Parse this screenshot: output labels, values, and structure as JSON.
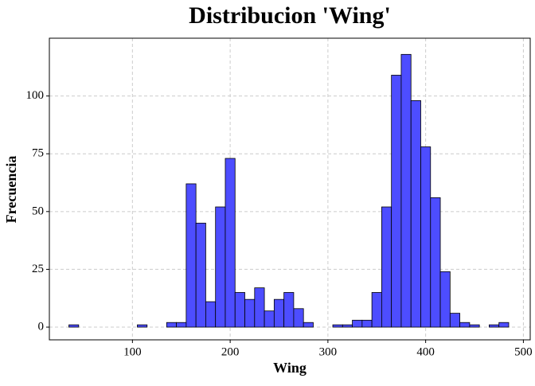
{
  "chart_data": {
    "type": "histogram",
    "title": "Distribucion 'Wing'",
    "x_label": "Wing",
    "y_label": "Frecuencia",
    "bins": [
      35,
      45,
      55,
      65,
      75,
      85,
      95,
      105,
      115,
      125,
      135,
      145,
      155,
      165,
      175,
      185,
      195,
      205,
      215,
      225,
      235,
      245,
      255,
      265,
      275,
      285,
      295,
      305,
      315,
      325,
      335,
      345,
      355,
      365,
      375,
      385,
      395,
      405,
      415,
      425,
      435,
      445,
      455,
      465,
      475,
      485
    ],
    "values": [
      1,
      0,
      0,
      0,
      0,
      0,
      0,
      1,
      0,
      0,
      2,
      2,
      62,
      45,
      11,
      52,
      73,
      15,
      12,
      17,
      7,
      12,
      15,
      8,
      2,
      0,
      0,
      1,
      1,
      3,
      3,
      15,
      52,
      109,
      118,
      98,
      78,
      56,
      24,
      6,
      2,
      1,
      0,
      1,
      2
    ],
    "color": "#4d4dff",
    "edge_color": "#000000",
    "xlim": [
      15,
      507
    ],
    "ylim": [
      -5.5,
      125
    ],
    "xticks": [
      100,
      200,
      300,
      400,
      500
    ],
    "yticks": [
      0,
      25,
      50,
      75,
      100
    ],
    "grid": true
  }
}
